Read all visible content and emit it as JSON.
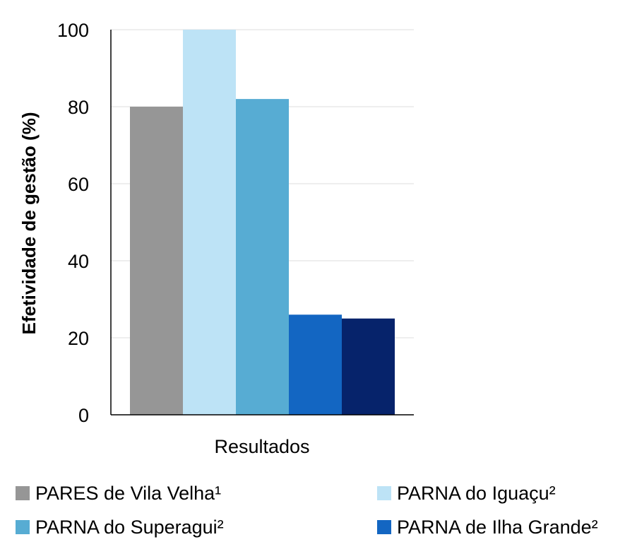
{
  "chart_data": {
    "type": "bar",
    "categories": [
      "Resultados"
    ],
    "series": [
      {
        "name": "PARES de Vila Velha¹",
        "values": [
          80
        ],
        "color": "#969696"
      },
      {
        "name": "PARNA do Iguaçu²",
        "values": [
          100
        ],
        "color": "#bde3f6"
      },
      {
        "name": "PARNA do Superagui²",
        "values": [
          82
        ],
        "color": "#57acd3"
      },
      {
        "name": "PARNA de Ilha Grande²",
        "values": [
          26
        ],
        "color": "#1366c2"
      },
      {
        "name": "",
        "values": [
          25
        ],
        "color": "#06236b"
      }
    ],
    "title": "",
    "xlabel": "",
    "ylabel": "Efetividade de gestão (%)",
    "ylim": [
      0,
      100
    ],
    "yticks": [
      0,
      20,
      40,
      60,
      80,
      100
    ],
    "grid": true,
    "legend_position": "bottom"
  }
}
